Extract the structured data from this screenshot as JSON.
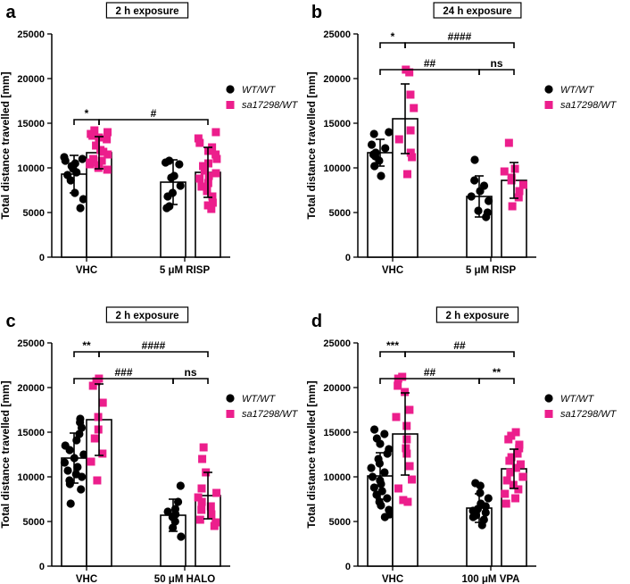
{
  "colors": {
    "wt": "#000000",
    "het": "#ec1e8c"
  },
  "chart_data": [
    {
      "panel": "a",
      "type": "bar",
      "title": "2 h exposure",
      "ylabel": "Total distance travelled [mm]",
      "ylim": [
        0,
        25000
      ],
      "yticks": [
        "0",
        "5000",
        "10000",
        "15000",
        "20000",
        "25000"
      ],
      "categories": [
        "VHC",
        "5 μM RISP"
      ],
      "legend": [
        "WT/WT",
        "sa17298/WT"
      ],
      "series": [
        {
          "name": "WT/WT",
          "values": [
            9300,
            8400
          ],
          "sd": [
            2100,
            2500
          ],
          "points": [
            [
              11200,
              11000,
              10800,
              10500,
              10200,
              9900,
              9500,
              9200,
              8600,
              7200,
              6500,
              5500
            ],
            [
              10800,
              10600,
              10400,
              9100,
              8900,
              8000,
              7200,
              6800,
              5700,
              5500
            ]
          ]
        },
        {
          "name": "sa17298/WT",
          "values": [
            11700,
            9500
          ],
          "sd": [
            1800,
            2800
          ],
          "points": [
            [
              14200,
              14000,
              13800,
              13600,
              13400,
              13200,
              12500,
              12000,
              11800,
              11500,
              11000,
              10800,
              10600,
              10400,
              10300,
              10200,
              10000,
              9800
            ],
            [
              14000,
              13300,
              12800,
              12300,
              11900,
              11500,
              11000,
              10500,
              10200,
              9700,
              9400,
              9100,
              8800,
              8300,
              7900,
              7400,
              6800,
              6100,
              5800,
              5400
            ]
          ]
        }
      ],
      "brackets": [
        {
          "label": "*",
          "from": [
            0,
            0
          ],
          "to": [
            0,
            1
          ],
          "level": 1
        },
        {
          "label": "#",
          "from": [
            0,
            1
          ],
          "to": [
            1,
            1
          ],
          "level": 1
        }
      ]
    },
    {
      "panel": "b",
      "type": "bar",
      "title": "24 h exposure",
      "ylabel": "Total distance travelled [mm]",
      "ylim": [
        0,
        25000
      ],
      "yticks": [
        "0",
        "5000",
        "10000",
        "15000",
        "20000",
        "25000"
      ],
      "categories": [
        "VHC",
        "5 μM RISP"
      ],
      "legend": [
        "WT/WT",
        "sa17298/WT"
      ],
      "series": [
        {
          "name": "WT/WT",
          "values": [
            11700,
            6800
          ],
          "sd": [
            1500,
            2300
          ],
          "points": [
            [
              14000,
              13800,
              12600,
              12200,
              11700,
              11500,
              11300,
              10800,
              10200,
              9100
            ],
            [
              10900,
              8600,
              8000,
              7400,
              6800,
              6300,
              5200,
              5000,
              4500
            ]
          ]
        },
        {
          "name": "sa17298/WT",
          "values": [
            15500,
            8600
          ],
          "sd": [
            3900,
            2000
          ],
          "points": [
            [
              21000,
              20700,
              18200,
              16700,
              14200,
              13200,
              11700,
              11200,
              9300
            ],
            [
              12800,
              9900,
              9600,
              8900,
              8600,
              8100,
              7400,
              6700,
              5700
            ]
          ]
        }
      ],
      "brackets": [
        {
          "label": "*",
          "from": [
            0,
            0
          ],
          "to": [
            0,
            1
          ],
          "level": 2
        },
        {
          "label": "####",
          "from": [
            0,
            1
          ],
          "to": [
            1,
            1
          ],
          "level": 2
        },
        {
          "label": "##",
          "from": [
            0,
            0
          ],
          "to": [
            1,
            0
          ],
          "level": 1
        },
        {
          "label": "ns",
          "from": [
            1,
            0
          ],
          "to": [
            1,
            1
          ],
          "level": 1
        }
      ]
    },
    {
      "panel": "c",
      "type": "bar",
      "title": "2 h exposure",
      "ylabel": "Total distance travelled [mm]",
      "ylim": [
        0,
        25000
      ],
      "yticks": [
        "0",
        "5000",
        "10000",
        "15000",
        "20000",
        "25000"
      ],
      "categories": [
        "VHC",
        "50 μM HALO"
      ],
      "legend": [
        "WT/WT",
        "sa17298/WT"
      ],
      "series": [
        {
          "name": "WT/WT",
          "values": [
            12100,
            5700
          ],
          "sd": [
            2800,
            1800
          ],
          "points": [
            [
              16500,
              16100,
              15500,
              14800,
              14100,
              13500,
              13000,
              12500,
              12100,
              11600,
              11100,
              10700,
              10300,
              10000,
              9600,
              9200,
              8600,
              7000
            ],
            [
              9000,
              7200,
              6400,
              6100,
              5800,
              5500,
              5000,
              4300,
              3300
            ]
          ]
        },
        {
          "name": "sa17298/WT",
          "values": [
            16400,
            7900
          ],
          "sd": [
            4000,
            2600
          ],
          "points": [
            [
              21000,
              20700,
              20200,
              18300,
              16700,
              15300,
              14300,
              12600,
              11700,
              9600
            ],
            [
              13300,
              12000,
              10500,
              8700,
              8200,
              7700,
              7200,
              6700,
              6300,
              5800,
              5200,
              4900,
              4500
            ]
          ]
        }
      ],
      "brackets": [
        {
          "label": "**",
          "from": [
            0,
            0
          ],
          "to": [
            0,
            1
          ],
          "level": 2
        },
        {
          "label": "####",
          "from": [
            0,
            1
          ],
          "to": [
            1,
            1
          ],
          "level": 2
        },
        {
          "label": "###",
          "from": [
            0,
            0
          ],
          "to": [
            1,
            0
          ],
          "level": 1
        },
        {
          "label": "ns",
          "from": [
            1,
            0
          ],
          "to": [
            1,
            1
          ],
          "level": 1
        }
      ]
    },
    {
      "panel": "d",
      "type": "bar",
      "title": "2 h exposure",
      "ylabel": "Total distance travelled [mm]",
      "ylim": [
        0,
        25000
      ],
      "yticks": [
        "0",
        "5000",
        "10000",
        "15000",
        "20000",
        "25000"
      ],
      "categories": [
        "VHC",
        "100 μM VPA"
      ],
      "legend": [
        "WT/WT",
        "sa17298/WT"
      ],
      "series": [
        {
          "name": "WT/WT",
          "values": [
            10100,
            6500
          ],
          "sd": [
            2600,
            1600
          ],
          "points": [
            [
              15300,
              14800,
              14300,
              13700,
              13100,
              12600,
              12000,
              11500,
              11000,
              10500,
              10000,
              9600,
              9200,
              8800,
              8400,
              8000,
              7600,
              7200,
              6800,
              6300,
              5800,
              5500
            ],
            [
              9300,
              9000,
              8200,
              7600,
              7000,
              6700,
              6400,
              6200,
              6000,
              5700,
              5500,
              5200,
              4600
            ]
          ]
        },
        {
          "name": "sa17298/WT",
          "values": [
            14800,
            10900
          ],
          "sd": [
            4600,
            2200
          ],
          "points": [
            [
              21200,
              21000,
              20200,
              19500,
              17500,
              16700,
              15700,
              14200,
              13200,
              12600,
              11200,
              9700,
              8700,
              7400,
              7200
            ],
            [
              15000,
              14600,
              14200,
              13600,
              13200,
              12600,
              12200,
              11800,
              11400,
              11000,
              10500,
              10000,
              9600,
              9100,
              8600,
              8100,
              7600,
              7000
            ]
          ]
        }
      ],
      "brackets": [
        {
          "label": "***",
          "from": [
            0,
            0
          ],
          "to": [
            0,
            1
          ],
          "level": 2
        },
        {
          "label": "##",
          "from": [
            0,
            1
          ],
          "to": [
            1,
            1
          ],
          "level": 2
        },
        {
          "label": "##",
          "from": [
            0,
            0
          ],
          "to": [
            1,
            0
          ],
          "level": 1
        },
        {
          "label": "**",
          "from": [
            1,
            0
          ],
          "to": [
            1,
            1
          ],
          "level": 1
        }
      ]
    }
  ]
}
